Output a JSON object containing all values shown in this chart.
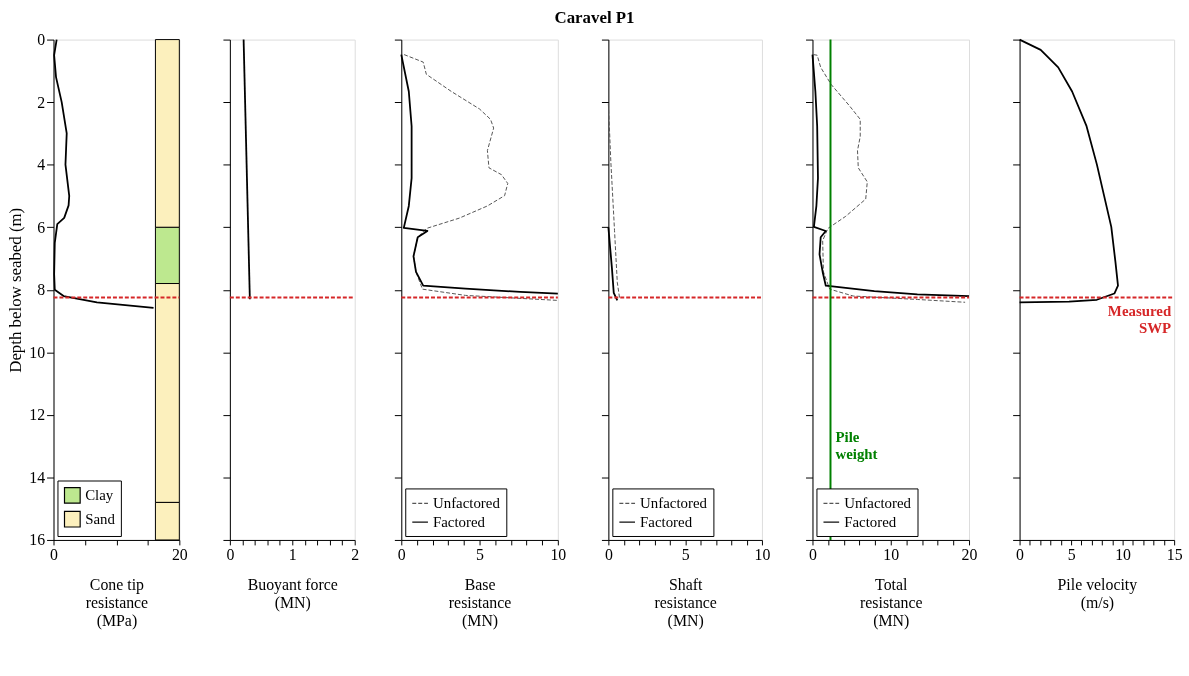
{
  "chart_data": [
    {
      "type": "line",
      "xlabel": "Cone tip resistance (MPa)",
      "ylabel": "Depth below seabed (m)",
      "xlim": [
        0,
        20
      ],
      "ylim": [
        16,
        0
      ],
      "xticks": [
        0,
        {
          "value": 5,
          "label": null
        },
        {
          "value": 10,
          "label": null
        },
        {
          "value": 15,
          "label": null
        },
        20
      ],
      "yticks": [
        0,
        2,
        4,
        6,
        8,
        10,
        12,
        14,
        16
      ],
      "grid": false,
      "legend": "bottom left",
      "series": [
        {
          "color": "#000000",
          "line_style": "solid",
          "x": [
            0.5,
            0.1,
            0.4,
            1.3,
            2.1,
            2.0,
            1.9,
            2.5,
            2.4,
            1.7,
            0.6,
            0.2,
            0.1,
            0.2,
            1.6,
            6.9,
            15.9
          ],
          "values": [
            0,
            0.5,
            1.2,
            2,
            3,
            3.5,
            4,
            5,
            5.3,
            5.7,
            5.9,
            6.5,
            7.5,
            8,
            8.2,
            8.4,
            8.58
          ]
        }
      ],
      "bands": [
        {
          "axis": "y",
          "from": 6,
          "to": 7.8,
          "label": "Clay",
          "color": "#bde88f"
        },
        {
          "axis": "y",
          "from": 0,
          "to": 6,
          "label": "Sand",
          "color": "#fcf0bd"
        },
        {
          "axis": "y",
          "from": 7.8,
          "to": 14.8,
          "color": "#fcf0bd"
        },
        {
          "axis": "y",
          "from": 14.8,
          "to": 16,
          "color": "#fcf0bd"
        }
      ],
      "ref_lines": [
        {
          "axis": "y",
          "value": 8.25,
          "color": "#d62728",
          "line_style": "dashed"
        }
      ]
    },
    {
      "type": "line",
      "xlabel": "Buoyant force (MN)",
      "xlim": [
        0,
        2
      ],
      "ylim": [
        16,
        0
      ],
      "xticks": [
        0,
        {
          "value": 0.2,
          "label": null
        },
        {
          "value": 0.4,
          "label": null
        },
        {
          "value": 0.6,
          "label": null
        },
        {
          "value": 0.8,
          "label": null
        },
        1,
        {
          "value": 1.2,
          "label": null
        },
        {
          "value": 1.4,
          "label": null
        },
        {
          "value": 1.6,
          "label": null
        },
        {
          "value": 1.8,
          "label": null
        },
        2
      ],
      "yticks": [
        0,
        2,
        4,
        6,
        8,
        10,
        12,
        14,
        16
      ],
      "tick_labels": "x",
      "grid": false,
      "series": [
        {
          "color": "#000000",
          "line_style": "solid",
          "x": [
            0.22,
            0.32
          ],
          "values": [
            0,
            8.3
          ]
        }
      ],
      "ref_lines": [
        {
          "axis": "y",
          "value": 8.25,
          "color": "#d62728",
          "line_style": "dashed"
        }
      ]
    },
    {
      "type": "line",
      "title": "Caravel P1",
      "xlabel": "Base resistance (MN)",
      "xlim": [
        0,
        10
      ],
      "ylim": [
        16,
        0
      ],
      "xticks": [
        0,
        {
          "value": 1,
          "label": null
        },
        {
          "value": 2,
          "label": null
        },
        {
          "value": 3,
          "label": null
        },
        {
          "value": 4,
          "label": null
        },
        5,
        {
          "value": 6,
          "label": null
        },
        {
          "value": 7,
          "label": null
        },
        {
          "value": 8,
          "label": null
        },
        {
          "value": 9,
          "label": null
        },
        10
      ],
      "yticks": [
        0,
        2,
        4,
        6,
        8,
        10,
        12,
        14,
        16
      ],
      "tick_labels": "x",
      "grid": false,
      "legend": "bottom left",
      "series": [
        {
          "name": "Unfactored",
          "color": "#555555",
          "line_style": "dashed",
          "x": [
            0.18,
            1.4,
            1.6,
            3.2,
            5.0,
            5.7,
            5.9,
            5.5,
            5.6,
            6.4,
            6.8,
            6.6,
            5.5,
            3.7,
            1.6,
            1.05,
            0.78,
            0.94,
            1.35,
            4.1,
            10
          ],
          "values": [
            0.48,
            0.72,
            1.11,
            1.66,
            2.22,
            2.55,
            2.83,
            3.55,
            4.1,
            4.32,
            4.6,
            4.99,
            5.32,
            5.71,
            6.04,
            6.32,
            6.93,
            7.43,
            7.98,
            8.18,
            8.34
          ]
        },
        {
          "name": "Factored",
          "color": "#000000",
          "line_style": "solid",
          "x": [
            0,
            0.48,
            0.66,
            0.66,
            0.48,
            0.16,
            1.67,
            1.05,
            0.78,
            0.94,
            1.4,
            4.1,
            7.6,
            10
          ],
          "values": [
            0.48,
            1.66,
            2.77,
            4.43,
            5.32,
            6.02,
            6.12,
            6.32,
            6.93,
            7.43,
            7.87,
            7.96,
            8.07,
            8.12
          ]
        }
      ],
      "ref_lines": [
        {
          "axis": "y",
          "value": 8.25,
          "color": "#d62728",
          "line_style": "dashed"
        }
      ]
    },
    {
      "type": "line",
      "xlabel": "Shaft resistance (MN)",
      "xlim": [
        0,
        10
      ],
      "ylim": [
        16,
        0
      ],
      "xticks": [
        0,
        {
          "value": 1,
          "label": null
        },
        {
          "value": 2,
          "label": null
        },
        {
          "value": 3,
          "label": null
        },
        {
          "value": 4,
          "label": null
        },
        5,
        {
          "value": 6,
          "label": null
        },
        {
          "value": 7,
          "label": null
        },
        {
          "value": 8,
          "label": null
        },
        {
          "value": 9,
          "label": null
        },
        10
      ],
      "yticks": [
        0,
        2,
        4,
        6,
        8,
        10,
        12,
        14,
        16
      ],
      "tick_labels": "x",
      "grid": false,
      "legend": "bottom left",
      "series": [
        {
          "name": "Unfactored",
          "color": "#555555",
          "line_style": "dashed",
          "x": [
            0,
            0.16,
            0.4,
            0.58,
            0.74
          ],
          "values": [
            2.05,
            3.9,
            6.1,
            7.76,
            8.3
          ]
        },
        {
          "name": "Factored",
          "color": "#000000",
          "line_style": "solid",
          "x": [
            0,
            0.23,
            0.35,
            0.58
          ],
          "values": [
            6.0,
            7.3,
            8.1,
            8.34
          ]
        }
      ],
      "ref_lines": [
        {
          "axis": "y",
          "value": 8.25,
          "color": "#d62728",
          "line_style": "dashed"
        }
      ]
    },
    {
      "type": "line",
      "xlabel": "Total resistance (MN)",
      "xlim": [
        0,
        20
      ],
      "ylim": [
        16,
        0
      ],
      "xticks": [
        0,
        {
          "value": 2,
          "label": null
        },
        {
          "value": 4,
          "label": null
        },
        {
          "value": 6,
          "label": null
        },
        {
          "value": 8,
          "label": null
        },
        10,
        {
          "value": 12,
          "label": null
        },
        {
          "value": 14,
          "label": null
        },
        {
          "value": 16,
          "label": null
        },
        {
          "value": 18,
          "label": null
        },
        20
      ],
      "yticks": [
        0,
        2,
        4,
        6,
        8,
        10,
        12,
        14,
        16
      ],
      "tick_labels": "x",
      "grid": false,
      "legend": "bottom left",
      "series": [
        {
          "name": "Unfactored",
          "color": "#555555",
          "line_style": "dashed",
          "x": [
            0.14,
            0.6,
            1.05,
            2.4,
            4.7,
            6.1,
            6.1,
            5.75,
            5.85,
            7.0,
            6.8,
            4.25,
            1.96,
            1.3,
            1.4,
            2.2,
            5.2,
            13.4,
            19.5
          ],
          "values": [
            0.48,
            0.5,
            0.89,
            1.44,
            2.11,
            2.55,
            3.1,
            3.55,
            4.1,
            4.55,
            5.1,
            5.65,
            6.04,
            6.43,
            7.43,
            7.98,
            8.2,
            8.31,
            8.4
          ]
        },
        {
          "name": "Factored",
          "color": "#000000",
          "line_style": "solid",
          "x": [
            0,
            0.37,
            0.6,
            0.7,
            0.5,
            0.18,
            1.7,
            1.05,
            0.9,
            1.3,
            1.7,
            7.9,
            13.4,
            20
          ],
          "values": [
            0.48,
            1.66,
            2.77,
            4.43,
            5.32,
            5.99,
            6.12,
            6.32,
            6.87,
            7.43,
            7.87,
            8.04,
            8.15,
            8.2
          ]
        }
      ],
      "ref_lines": [
        {
          "axis": "y",
          "value": 8.25,
          "color": "#d62728",
          "line_style": "dashed"
        },
        {
          "axis": "x",
          "value": 2.3,
          "label": "Pile weight",
          "color": "#008000",
          "line_style": "solid"
        }
      ]
    },
    {
      "type": "line",
      "xlabel": "Pile velocity (m/s)",
      "xlim": [
        0,
        15
      ],
      "ylim": [
        16,
        0
      ],
      "xticks": [
        0,
        {
          "value": 1,
          "label": null
        },
        {
          "value": 2,
          "label": null
        },
        {
          "value": 3,
          "label": null
        },
        {
          "value": 4,
          "label": null
        },
        5,
        {
          "value": 6,
          "label": null
        },
        {
          "value": 7,
          "label": null
        },
        {
          "value": 8,
          "label": null
        },
        {
          "value": 9,
          "label": null
        },
        10,
        {
          "value": 11,
          "label": null
        },
        {
          "value": 12,
          "label": null
        },
        {
          "value": 13,
          "label": null
        },
        {
          "value": 14,
          "label": null
        },
        15
      ],
      "yticks": [
        0,
        2,
        4,
        6,
        8,
        10,
        12,
        14,
        16
      ],
      "tick_labels": "x",
      "grid": false,
      "series": [
        {
          "color": "#000000",
          "line_style": "solid",
          "x": [
            0,
            2.05,
            3.75,
            5.1,
            6.5,
            7.5,
            8.2,
            8.9,
            9.3,
            9.55,
            9.2,
            7.5,
            4.8,
            0
          ],
          "values": [
            0,
            0.33,
            0.89,
            1.66,
            2.77,
            3.99,
            4.99,
            5.99,
            7.1,
            7.87,
            8.12,
            8.32,
            8.38,
            8.4
          ]
        }
      ],
      "ref_lines": [
        {
          "axis": "y",
          "value": 8.25,
          "label": "Measured SWP",
          "color": "#d62728",
          "line_style": "dashed"
        }
      ]
    }
  ]
}
